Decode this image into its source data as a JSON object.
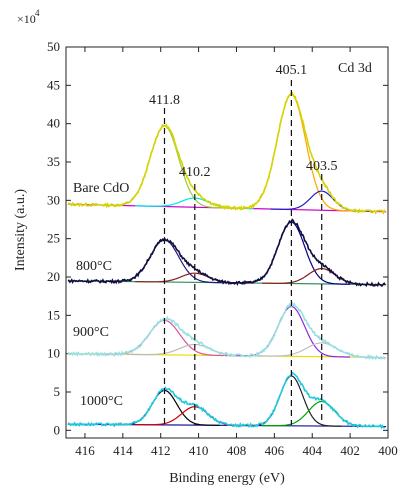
{
  "chart_data": {
    "type": "line",
    "xlabel": "Binding energy (eV)",
    "ylabel": "Intensity (a.u.)",
    "y_multiplier": "×10",
    "y_multiplier_exp": "4",
    "xlim": [
      417,
      400
    ],
    "ylim": [
      -1,
      50
    ],
    "x_ticks": [
      416,
      414,
      412,
      410,
      408,
      406,
      404,
      402,
      400
    ],
    "y_ticks": [
      0,
      5,
      10,
      15,
      20,
      25,
      30,
      35,
      40,
      45,
      50
    ],
    "grid": false,
    "title_annotation": "Cd 3d",
    "peak_lines": [
      411.8,
      410.2,
      405.1,
      403.5
    ],
    "peak_labels": [
      {
        "text": "411.8",
        "x": 411.8
      },
      {
        "text": "410.2",
        "x": 410.2
      },
      {
        "text": "405.1",
        "x": 405.1
      },
      {
        "text": "403.5",
        "x": 403.5
      }
    ],
    "spectra": [
      {
        "label": "Bare CdO",
        "baseline": 29.5,
        "tail_to": 28.5,
        "components": [
          {
            "center": 411.8,
            "height": 10.5,
            "width": 0.75,
            "color": "#9ACD32"
          },
          {
            "center": 410.2,
            "height": 1.2,
            "width": 0.7,
            "color": "#00E5EE"
          },
          {
            "center": 405.1,
            "height": 15.0,
            "width": 0.75,
            "color": "#FFA500"
          },
          {
            "center": 403.5,
            "height": 2.5,
            "width": 0.6,
            "color": "#1E1EC8"
          }
        ],
        "envelope_color": "#D4D400",
        "baseline_color": "#CC00CC"
      },
      {
        "label": "800°C",
        "baseline": 19.5,
        "tail_to": 19.0,
        "components": [
          {
            "center": 411.8,
            "height": 5.5,
            "width": 0.75,
            "color": "#1C1C7A"
          },
          {
            "center": 410.2,
            "height": 1.2,
            "width": 0.7,
            "color": "#8B1A1A"
          },
          {
            "center": 405.1,
            "height": 8.0,
            "width": 0.7,
            "color": "#00008B"
          },
          {
            "center": 403.5,
            "height": 2.0,
            "width": 0.7,
            "color": "#8B1A1A"
          }
        ],
        "envelope_color": "#101040",
        "baseline_color": "#2E8B57"
      },
      {
        "label": "900°C",
        "baseline": 10.0,
        "tail_to": 9.5,
        "components": [
          {
            "center": 411.8,
            "height": 4.5,
            "width": 0.8,
            "color": "#E0509A"
          },
          {
            "center": 410.2,
            "height": 1.4,
            "width": 0.8,
            "color": "#BBBBBB"
          },
          {
            "center": 405.1,
            "height": 6.5,
            "width": 0.7,
            "color": "#8A2BE2"
          },
          {
            "center": 403.5,
            "height": 1.8,
            "width": 0.8,
            "color": "#C0C0C0"
          }
        ],
        "envelope_color": "#9ADFE0",
        "baseline_color": "#E8E000"
      },
      {
        "label": "1000°C",
        "baseline": 0.8,
        "tail_to": 0.5,
        "components": [
          {
            "center": 411.8,
            "height": 4.5,
            "width": 0.65,
            "color": "#000000"
          },
          {
            "center": 410.2,
            "height": 2.4,
            "width": 0.7,
            "color": "#CC0000"
          },
          {
            "center": 405.1,
            "height": 6.5,
            "width": 0.6,
            "color": "#222222"
          },
          {
            "center": 403.5,
            "height": 3.2,
            "width": 0.7,
            "color": "#00A000"
          }
        ],
        "envelope_color": "#22C8E0",
        "baseline_color": "#1010A0"
      }
    ]
  }
}
